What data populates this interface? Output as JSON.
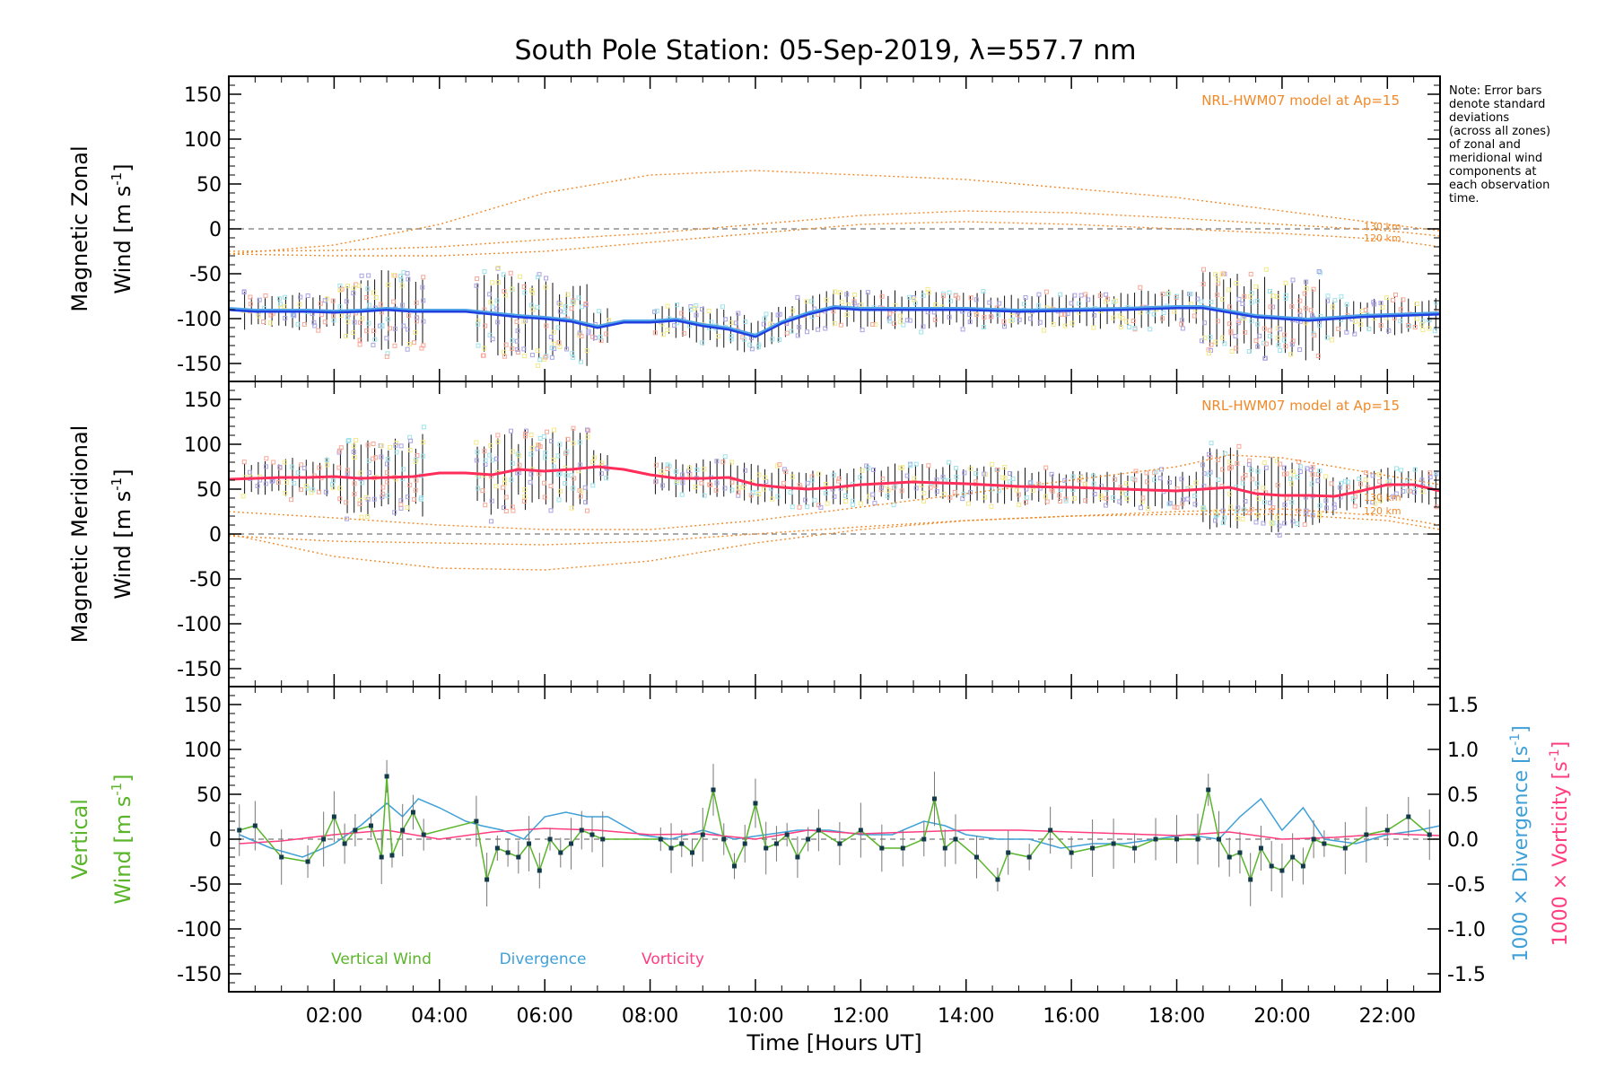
{
  "title": "South Pole Station: 05-Sep-2019, λ=557.7 nm",
  "note_lines": [
    "Note: Error bars",
    "denote standard",
    "deviations",
    "(across all zones)",
    "of zonal and",
    "meridional wind",
    "components at",
    "each observation",
    "time."
  ],
  "colors": {
    "zonal": "#1f3fe0",
    "zonal_light": "#4fa3e6",
    "meridional": "#ff2d5a",
    "vertical": "#5ab52a",
    "divergence": "#3fa0d8",
    "vorticity": "#ff3d80",
    "model": "#f08a2a",
    "scatter_lavender": "#a9a3e3",
    "scatter_salmon": "#f7a898",
    "scatter_yellow": "#f2ea8a",
    "scatter_cyan": "#9fe3ea",
    "errorbar": "#111111"
  },
  "chart_data": [
    {
      "type": "scatter",
      "panel": "top",
      "ylabel_line1": "Magnetic Zonal",
      "ylabel_line2": "Wind [m s",
      "ylabel_sup": "-1",
      "ylabel_close": "]",
      "ylim": [
        -170,
        170
      ],
      "yticks": [
        150,
        100,
        50,
        0,
        -50,
        -100,
        -150
      ],
      "xlim": [
        0.0,
        23.0
      ],
      "model_label": "NRL-HWM07 model at Ap=15",
      "altitude_labels": [
        "130 km",
        "120 km"
      ],
      "mean_series": {
        "name": "Zonal Wind",
        "x": [
          0.0,
          0.5,
          1.0,
          1.5,
          2.0,
          2.5,
          3.0,
          3.5,
          4.0,
          4.5,
          5.0,
          5.5,
          6.0,
          6.5,
          7.0,
          7.5,
          8.0,
          8.5,
          9.0,
          9.5,
          10.0,
          10.5,
          11.0,
          11.5,
          12.0,
          13.0,
          14.0,
          15.0,
          16.0,
          17.0,
          18.0,
          18.5,
          19.0,
          19.5,
          20.0,
          20.5,
          21.0,
          21.5,
          22.0,
          22.5,
          23.0
        ],
        "y": [
          -90,
          -92,
          -92,
          -92,
          -93,
          -92,
          -90,
          -92,
          -92,
          -92,
          -95,
          -98,
          -100,
          -103,
          -110,
          -104,
          -104,
          -102,
          -108,
          -112,
          -120,
          -105,
          -95,
          -88,
          -90,
          -90,
          -90,
          -92,
          -91,
          -90,
          -88,
          -88,
          -93,
          -98,
          -100,
          -102,
          -100,
          -98,
          -97,
          -96,
          -95
        ]
      },
      "model_curves": [
        {
          "name": "model upper",
          "x": [
            0,
            2,
            4,
            6,
            8,
            10,
            12,
            14,
            16,
            18,
            20,
            22,
            23
          ],
          "y": [
            -28,
            -18,
            5,
            40,
            60,
            65,
            60,
            55,
            45,
            35,
            20,
            5,
            -2
          ]
        },
        {
          "name": "130 km",
          "x": [
            0,
            2,
            4,
            6,
            8,
            10,
            12,
            14,
            16,
            18,
            20,
            22,
            23
          ],
          "y": [
            -25,
            -24,
            -20,
            -12,
            -5,
            5,
            15,
            20,
            18,
            12,
            5,
            -2,
            -8
          ]
        },
        {
          "name": "120 km",
          "x": [
            0,
            2,
            4,
            6,
            8,
            10,
            12,
            14,
            16,
            18,
            20,
            22,
            23
          ],
          "y": [
            -28,
            -30,
            -30,
            -25,
            -15,
            -5,
            5,
            8,
            5,
            0,
            -5,
            -12,
            -20
          ]
        }
      ]
    },
    {
      "type": "scatter",
      "panel": "middle",
      "ylabel_line1": "Magnetic Meridional",
      "ylabel_line2": "Wind [m s",
      "ylabel_sup": "-1",
      "ylabel_close": "]",
      "ylim": [
        -170,
        170
      ],
      "yticks": [
        150,
        100,
        50,
        0,
        -50,
        -100,
        -150
      ],
      "xlim": [
        0.0,
        23.0
      ],
      "model_label": "NRL-HWM07 model at Ap=15",
      "altitude_labels": [
        "130 km",
        "120 km"
      ],
      "mean_series": {
        "name": "Meridional Wind",
        "x": [
          0.0,
          0.5,
          1.0,
          1.5,
          2.0,
          2.5,
          3.0,
          3.5,
          4.0,
          4.5,
          5.0,
          5.5,
          6.0,
          6.5,
          7.0,
          7.5,
          8.0,
          8.5,
          9.0,
          9.5,
          10.0,
          10.5,
          11.0,
          11.5,
          12.0,
          13.0,
          14.0,
          15.0,
          16.0,
          17.0,
          18.0,
          19.0,
          19.5,
          20.0,
          20.5,
          21.0,
          21.5,
          22.0,
          22.5,
          23.0
        ],
        "y": [
          61,
          62,
          63,
          63,
          64,
          62,
          63,
          64,
          68,
          68,
          66,
          72,
          70,
          72,
          75,
          72,
          66,
          62,
          62,
          63,
          55,
          52,
          50,
          52,
          55,
          58,
          56,
          53,
          52,
          50,
          48,
          52,
          45,
          43,
          43,
          42,
          48,
          55,
          55,
          48
        ]
      },
      "model_curves": [
        {
          "name": "model upper",
          "x": [
            0,
            2,
            4,
            6,
            8,
            10,
            12,
            14,
            16,
            18,
            19,
            20,
            21,
            22,
            23
          ],
          "y": [
            25,
            18,
            10,
            5,
            5,
            15,
            30,
            45,
            60,
            75,
            88,
            85,
            75,
            65,
            55
          ]
        },
        {
          "name": "130 km",
          "x": [
            0,
            2,
            4,
            6,
            8,
            10,
            12,
            14,
            16,
            18,
            20,
            22,
            23
          ],
          "y": [
            -2,
            -8,
            -10,
            -12,
            -8,
            0,
            8,
            15,
            20,
            25,
            28,
            20,
            10
          ]
        },
        {
          "name": "120 km",
          "x": [
            0,
            2,
            4,
            6,
            8,
            10,
            12,
            14,
            16,
            18,
            20,
            22,
            23
          ],
          "y": [
            0,
            -25,
            -38,
            -40,
            -30,
            -10,
            5,
            15,
            20,
            22,
            22,
            15,
            5
          ]
        }
      ]
    },
    {
      "type": "line",
      "panel": "bottom",
      "ylabel_line1": "Vertical",
      "ylabel_line2": "Wind [m s",
      "ylabel_sup": "-1",
      "ylabel_close": "]",
      "ylim": [
        -170,
        170
      ],
      "yticks": [
        150,
        100,
        50,
        0,
        -50,
        -100,
        -150
      ],
      "xlim": [
        0.0,
        23.0
      ],
      "xlabel": "Time [Hours UT]",
      "xtick_labels": [
        "02:00",
        "04:00",
        "06:00",
        "08:00",
        "10:00",
        "12:00",
        "14:00",
        "16:00",
        "18:00",
        "20:00",
        "22:00"
      ],
      "xtick_values": [
        2,
        4,
        6,
        8,
        10,
        12,
        14,
        16,
        18,
        20,
        22
      ],
      "right_axis": {
        "ylim": [
          -1.7,
          1.7
        ],
        "ticks": [
          1.5,
          1.0,
          0.5,
          0.0,
          -0.5,
          -1.0,
          -1.5
        ],
        "tick_labels": [
          "1.5",
          "1.0",
          "0.5",
          "0.0",
          "-0.5",
          "-1.0",
          "-1.5"
        ],
        "label_div": "1000 × Divergence [s",
        "label_vor": "1000 × Vorticity [s",
        "label_sup": "-1",
        "label_close": "]"
      },
      "legend": [
        "Vertical Wind",
        "Divergence",
        "Vorticity"
      ],
      "series": [
        {
          "name": "Vertical Wind",
          "x": [
            0.2,
            0.5,
            1.0,
            1.5,
            1.8,
            2.0,
            2.2,
            2.4,
            2.7,
            2.9,
            3.0,
            3.1,
            3.3,
            3.5,
            3.7,
            4.7,
            4.9,
            5.1,
            5.3,
            5.5,
            5.7,
            5.9,
            6.1,
            6.3,
            6.5,
            6.7,
            6.9,
            7.1,
            8.2,
            8.4,
            8.6,
            8.8,
            9.0,
            9.2,
            9.4,
            9.6,
            9.8,
            10.0,
            10.2,
            10.4,
            10.6,
            10.8,
            11.0,
            11.2,
            11.6,
            12.0,
            12.4,
            12.8,
            13.2,
            13.4,
            13.6,
            13.8,
            14.2,
            14.6,
            14.8,
            15.2,
            15.6,
            16.0,
            16.4,
            16.8,
            17.2,
            17.6,
            18.0,
            18.4,
            18.6,
            18.8,
            19.0,
            19.2,
            19.4,
            19.6,
            19.8,
            20.0,
            20.2,
            20.4,
            20.6,
            20.8,
            21.2,
            21.6,
            22.0,
            22.4,
            22.8
          ],
          "y": [
            10,
            15,
            -20,
            -25,
            0,
            25,
            -5,
            10,
            15,
            -20,
            70,
            -18,
            10,
            30,
            5,
            20,
            -45,
            -10,
            -15,
            -20,
            -5,
            -35,
            0,
            -15,
            -5,
            10,
            5,
            0,
            0,
            -10,
            -5,
            -15,
            5,
            55,
            0,
            -30,
            -5,
            40,
            -10,
            -5,
            5,
            -20,
            0,
            10,
            -5,
            10,
            -10,
            -10,
            0,
            45,
            -10,
            0,
            -20,
            -45,
            -15,
            -20,
            10,
            -15,
            -10,
            -5,
            -10,
            0,
            0,
            0,
            55,
            0,
            -20,
            -15,
            -45,
            -10,
            -30,
            -35,
            -20,
            -30,
            0,
            -5,
            -10,
            5,
            10,
            25,
            5
          ]
        },
        {
          "name": "Divergence",
          "x": [
            0.2,
            0.8,
            1.4,
            2.0,
            2.5,
            3.0,
            3.3,
            3.6,
            4.0,
            4.5,
            4.8,
            5.2,
            5.6,
            6.0,
            6.4,
            6.8,
            7.2,
            7.8,
            8.4,
            9.0,
            9.6,
            10.2,
            10.8,
            11.4,
            12.0,
            12.6,
            13.2,
            13.6,
            14.0,
            14.6,
            15.2,
            15.8,
            16.4,
            17.0,
            17.6,
            18.2,
            18.8,
            19.2,
            19.6,
            20.0,
            20.4,
            20.8,
            21.4,
            22.0,
            22.6,
            23.0
          ],
          "y": [
            0.05,
            -0.1,
            -0.2,
            -0.05,
            0.15,
            0.4,
            0.25,
            0.45,
            0.35,
            0.2,
            0.15,
            0.1,
            0.0,
            0.25,
            0.3,
            0.25,
            0.25,
            0.05,
            0.0,
            0.1,
            0.0,
            0.05,
            0.1,
            0.1,
            0.05,
            0.05,
            0.2,
            0.15,
            0.05,
            0.0,
            0.0,
            -0.1,
            -0.05,
            -0.05,
            0.0,
            0.05,
            0.0,
            0.25,
            0.45,
            0.1,
            0.35,
            0.0,
            -0.05,
            0.05,
            0.1,
            0.15
          ]
        },
        {
          "name": "Vorticity",
          "x": [
            0.2,
            1.0,
            2.0,
            3.0,
            4.0,
            5.0,
            6.0,
            7.0,
            8.0,
            9.0,
            10.0,
            11.0,
            12.0,
            13.0,
            14.0,
            15.0,
            16.0,
            17.0,
            18.0,
            19.0,
            20.0,
            21.0,
            22.0,
            23.0
          ],
          "y": [
            -0.05,
            -0.02,
            0.05,
            0.1,
            0.0,
            0.08,
            0.12,
            0.1,
            0.05,
            0.06,
            0.0,
            0.1,
            0.06,
            0.08,
            0.1,
            0.1,
            0.08,
            0.06,
            0.04,
            0.08,
            0.0,
            0.02,
            0.06,
            0.04
          ]
        }
      ]
    }
  ]
}
